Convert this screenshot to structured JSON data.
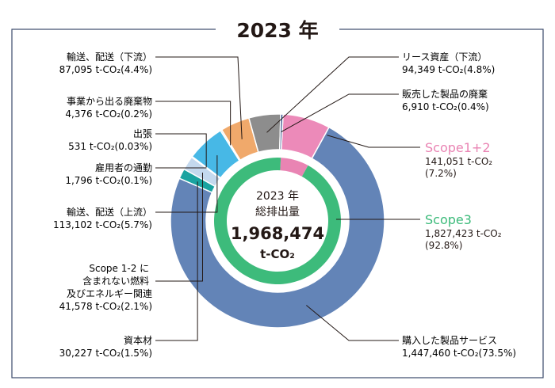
{
  "page": {
    "title": "2023 年"
  },
  "center": {
    "year": "2023 年",
    "caption": "総排出量",
    "total": "1,968,474",
    "unit": "t-CO₂"
  },
  "scopes": [
    {
      "name": "Scope1+2",
      "value": "141,051 t-CO₂",
      "share": "(7.2%)",
      "color": "#e984b3"
    },
    {
      "name": "Scope3",
      "value": "1,827,423 t-CO₂",
      "share": "(92.8%)",
      "color": "#3dbb7b"
    }
  ],
  "colors": {
    "frame": "#3b4a6b",
    "inner_scope12": "#e984b3",
    "inner_scope3": "#3dbb7b",
    "leader": "#231815"
  },
  "chart_data": {
    "type": "pie",
    "title": "2023 年",
    "unit": "t-CO₂",
    "total": 1968474,
    "inner_ring": [
      {
        "label": "Scope1+2",
        "value": 141051,
        "percent": 7.2,
        "color": "#e984b3"
      },
      {
        "label": "Scope3",
        "value": 1827423,
        "percent": 92.8,
        "color": "#3dbb7b"
      }
    ],
    "series": [
      {
        "label": "Scope1+2",
        "value": 141051,
        "percent": 7.2,
        "color": "#ec8ab9"
      },
      {
        "label": "購入した製品サービス",
        "value": 1447460,
        "percent": 73.5,
        "color": "#6384b7"
      },
      {
        "label": "資本材",
        "value": 30227,
        "percent": 1.5,
        "color": "#1aa3a0"
      },
      {
        "label": "Scope 1-2 に含まれない燃料及びエネルギー関連",
        "value": 41578,
        "percent": 2.1,
        "color": "#c4d9ee"
      },
      {
        "label": "雇用者の通勤",
        "value": 1796,
        "percent": 0.1,
        "color": "#7fc6e9"
      },
      {
        "label": "出張",
        "value": 531,
        "percent": 0.03,
        "color": "#ffffff"
      },
      {
        "label": "輸送、配送（上流）",
        "value": 113102,
        "percent": 5.7,
        "color": "#47b8e6"
      },
      {
        "label": "事業から出る廃棄物",
        "value": 4376,
        "percent": 0.2,
        "color": "#cccccc"
      },
      {
        "label": "輸送、配送（下流）",
        "value": 87095,
        "percent": 4.4,
        "color": "#f0a96b"
      },
      {
        "label": "リース資産（下流）",
        "value": 94349,
        "percent": 4.8,
        "color": "#8d8d8d"
      },
      {
        "label": "販売した製品の廃棄",
        "value": 6910,
        "percent": 0.4,
        "color": "#2c4a87"
      }
    ],
    "labels": [
      {
        "key": "transport_down",
        "name": "輸送、配送（下流）",
        "value": "87,095 t-CO₂(4.4%)"
      },
      {
        "key": "waste",
        "name": "事業から出る廃棄物",
        "value": "4,376 t-CO₂(0.2%)"
      },
      {
        "key": "business_travel",
        "name": "出張",
        "value": "531 t-CO₂(0.03%)"
      },
      {
        "key": "commuting",
        "name": "雇用者の通勤",
        "value": "1,796 t-CO₂(0.1%)"
      },
      {
        "key": "transport_up",
        "name": "輸送、配送（上流）",
        "value": "113,102 t-CO₂(5.7%)"
      },
      {
        "key": "fuel_energy",
        "name": "Scope 1-2 に\n含まれない燃料\n及びエネルギー関連",
        "value": "41,578 t-CO₂(2.1%)"
      },
      {
        "key": "capital_goods",
        "name": "資本材",
        "value": "30,227 t-CO₂(1.5%)"
      },
      {
        "key": "leased_assets",
        "name": "リース資産（下流）",
        "value": "94,349 t-CO₂(4.8%)"
      },
      {
        "key": "end_of_life",
        "name": "販売した製品の廃棄",
        "value": "6,910 t-CO₂(0.4%)"
      },
      {
        "key": "purchased_goods",
        "name": "購入した製品サービス",
        "value": "1,447,460 t-CO₂(73.5%)"
      }
    ]
  }
}
